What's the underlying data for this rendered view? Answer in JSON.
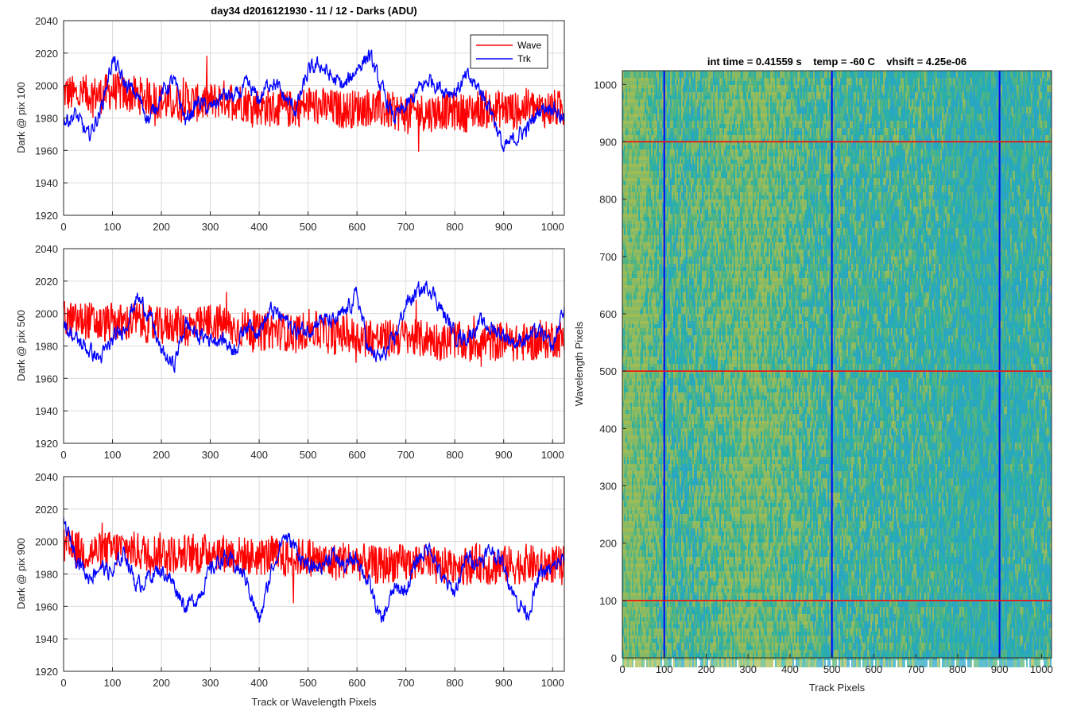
{
  "chart_data": [
    {
      "type": "line",
      "title": "day34 d2016121930 - 11 / 12 - Darks (ADU)",
      "xlabel": "",
      "ylabel": "Dark @ pix 100",
      "xlim": [
        0,
        1024
      ],
      "ylim": [
        1920,
        2040
      ],
      "xticks": [
        "0",
        "100",
        "200",
        "300",
        "400",
        "500",
        "600",
        "700",
        "800",
        "900",
        "1000"
      ],
      "yticks": [
        "1920",
        "1940",
        "1960",
        "1980",
        "2000",
        "2020",
        "2040"
      ],
      "grid": true,
      "legend": {
        "location": "top-right",
        "entries": [
          "Wave",
          "Trk"
        ]
      },
      "series": [
        {
          "name": "Wave",
          "color": "#ff0000",
          "x": [
            0,
            25,
            50,
            75,
            100,
            125,
            150,
            175,
            200,
            225,
            250,
            275,
            300,
            325,
            350,
            375,
            400,
            425,
            450,
            475,
            500,
            525,
            550,
            575,
            600,
            625,
            650,
            675,
            700,
            725,
            750,
            775,
            800,
            825,
            850,
            875,
            900,
            925,
            950,
            975,
            1000,
            1024
          ],
          "values": [
            1996,
            1994,
            1995,
            1994,
            1997,
            1995,
            1994,
            1993,
            1990,
            1989,
            1991,
            1989,
            1990,
            1992,
            1991,
            1989,
            1987,
            1986,
            1985,
            1986,
            1988,
            1987,
            1986,
            1985,
            1986,
            1987,
            1985,
            1984,
            1983,
            1984,
            1983,
            1985,
            1984,
            1983,
            1986,
            1985,
            1986,
            1984,
            1987,
            1985,
            1986,
            1985
          ],
          "noise_amplitude": 12
        },
        {
          "name": "Trk",
          "color": "#0000ff",
          "x": [
            0,
            25,
            50,
            75,
            100,
            125,
            150,
            175,
            200,
            225,
            250,
            275,
            300,
            325,
            350,
            375,
            400,
            425,
            450,
            475,
            500,
            525,
            550,
            575,
            600,
            625,
            650,
            675,
            700,
            725,
            750,
            775,
            800,
            825,
            850,
            875,
            900,
            925,
            950,
            975,
            1000,
            1024
          ],
          "values": [
            1978,
            1982,
            1968,
            1984,
            2016,
            2001,
            1994,
            1979,
            1995,
            2003,
            1978,
            1990,
            1985,
            1994,
            1992,
            2000,
            1991,
            2004,
            1993,
            1985,
            2008,
            2013,
            2004,
            1999,
            2011,
            2019,
            1998,
            1980,
            1986,
            1997,
            2004,
            1998,
            1996,
            2005,
            1998,
            1985,
            1960,
            1968,
            1974,
            1986,
            1988,
            1978
          ],
          "noise_amplitude": 4
        }
      ]
    },
    {
      "type": "line",
      "title": "",
      "xlabel": "",
      "ylabel": "Dark @ pix 500",
      "xlim": [
        0,
        1024
      ],
      "ylim": [
        1920,
        2040
      ],
      "xticks": [
        "0",
        "100",
        "200",
        "300",
        "400",
        "500",
        "600",
        "700",
        "800",
        "900",
        "1000"
      ],
      "yticks": [
        "1920",
        "1940",
        "1960",
        "1980",
        "2000",
        "2020",
        "2040"
      ],
      "grid": true,
      "series": [
        {
          "name": "Wave",
          "color": "#ff0000",
          "x": [
            0,
            25,
            50,
            75,
            100,
            125,
            150,
            175,
            200,
            225,
            250,
            275,
            300,
            325,
            350,
            375,
            400,
            425,
            450,
            475,
            500,
            525,
            550,
            575,
            600,
            625,
            650,
            675,
            700,
            725,
            750,
            775,
            800,
            825,
            850,
            875,
            900,
            925,
            950,
            975,
            1000,
            1024
          ],
          "values": [
            1997,
            1995,
            1996,
            1993,
            1995,
            1994,
            1996,
            1993,
            1992,
            1994,
            1991,
            1992,
            1995,
            1994,
            1990,
            1992,
            1988,
            1990,
            1989,
            1987,
            1991,
            1989,
            1986,
            1988,
            1985,
            1986,
            1984,
            1985,
            1986,
            1984,
            1985,
            1982,
            1984,
            1981,
            1983,
            1982,
            1984,
            1981,
            1983,
            1982,
            1985,
            1984
          ],
          "noise_amplitude": 12
        },
        {
          "name": "Trk",
          "color": "#0000ff",
          "x": [
            0,
            25,
            50,
            75,
            100,
            125,
            150,
            175,
            200,
            225,
            250,
            275,
            300,
            325,
            350,
            375,
            400,
            425,
            450,
            475,
            500,
            525,
            550,
            575,
            600,
            625,
            650,
            675,
            700,
            725,
            750,
            775,
            800,
            825,
            850,
            875,
            900,
            925,
            950,
            975,
            1000,
            1024
          ],
          "values": [
            1994,
            1984,
            1978,
            1972,
            1983,
            1992,
            2010,
            2000,
            1976,
            1968,
            1994,
            1986,
            1985,
            1984,
            1978,
            1994,
            1990,
            2002,
            1997,
            1989,
            1990,
            1997,
            1994,
            2000,
            2012,
            1976,
            1972,
            1983,
            2006,
            2013,
            2017,
            2001,
            1987,
            1985,
            1994,
            1991,
            1987,
            1982,
            1986,
            1988,
            1978,
            2005
          ],
          "noise_amplitude": 4
        }
      ]
    },
    {
      "type": "line",
      "title": "",
      "xlabel": "Track or Wavelength Pixels",
      "ylabel": "Dark @ pix 900",
      "xlim": [
        0,
        1024
      ],
      "ylim": [
        1920,
        2040
      ],
      "xticks": [
        "0",
        "100",
        "200",
        "300",
        "400",
        "500",
        "600",
        "700",
        "800",
        "900",
        "1000"
      ],
      "yticks": [
        "1920",
        "1940",
        "1960",
        "1980",
        "2000",
        "2020",
        "2040"
      ],
      "grid": true,
      "series": [
        {
          "name": "Wave",
          "color": "#ff0000",
          "x": [
            0,
            25,
            50,
            75,
            100,
            125,
            150,
            175,
            200,
            225,
            250,
            275,
            300,
            325,
            350,
            375,
            400,
            425,
            450,
            475,
            500,
            525,
            550,
            575,
            600,
            625,
            650,
            675,
            700,
            725,
            750,
            775,
            800,
            825,
            850,
            875,
            900,
            925,
            950,
            975,
            1000,
            1024
          ],
          "values": [
            1996,
            1995,
            1993,
            1994,
            1995,
            1996,
            1994,
            1993,
            1994,
            1992,
            1993,
            1991,
            1995,
            1993,
            1992,
            1991,
            1990,
            1992,
            1989,
            1990,
            1991,
            1988,
            1987,
            1989,
            1988,
            1986,
            1985,
            1987,
            1986,
            1988,
            1985,
            1984,
            1986,
            1985,
            1987,
            1984,
            1986,
            1985,
            1987,
            1984,
            1986,
            1985
          ],
          "noise_amplitude": 12
        },
        {
          "name": "Trk",
          "color": "#0000ff",
          "x": [
            0,
            25,
            50,
            75,
            100,
            125,
            150,
            175,
            200,
            225,
            250,
            275,
            300,
            325,
            350,
            375,
            400,
            425,
            450,
            475,
            500,
            525,
            550,
            575,
            600,
            625,
            650,
            675,
            700,
            725,
            750,
            775,
            800,
            825,
            850,
            875,
            900,
            925,
            950,
            975,
            1000,
            1024
          ],
          "values": [
            2012,
            1992,
            1978,
            1985,
            1980,
            1994,
            1972,
            1979,
            1983,
            1974,
            1960,
            1966,
            1982,
            1990,
            1986,
            1976,
            1950,
            1982,
            2004,
            1996,
            1983,
            1985,
            1992,
            1984,
            1991,
            1973,
            1950,
            1970,
            1970,
            1990,
            1997,
            1976,
            1969,
            1990,
            1988,
            1995,
            1986,
            1964,
            1956,
            1980,
            1983,
            1990
          ],
          "noise_amplitude": 4
        }
      ]
    },
    {
      "type": "heatmap",
      "title": "int time = 0.41559 s    temp = -60 C    vhsift = 4.25e-06",
      "xlabel": "Track Pixels",
      "ylabel": "Wavelength Pixels",
      "xlim": [
        0,
        1024
      ],
      "ylim": [
        0,
        1024
      ],
      "xticks": [
        "0",
        "100",
        "200",
        "300",
        "400",
        "500",
        "600",
        "700",
        "800",
        "900",
        "1000"
      ],
      "yticks": [
        "0",
        "100",
        "200",
        "300",
        "400",
        "500",
        "600",
        "700",
        "800",
        "900",
        "1000"
      ],
      "colormap": [
        "#2aa4c8",
        "#2bb0a8",
        "#5cb57a",
        "#a8bd50"
      ],
      "vertical_markers": {
        "color": "#0000ff",
        "x": [
          100,
          500,
          900
        ]
      },
      "horizontal_markers": {
        "color": "#ff0000",
        "y": [
          100,
          500,
          900
        ]
      }
    }
  ]
}
